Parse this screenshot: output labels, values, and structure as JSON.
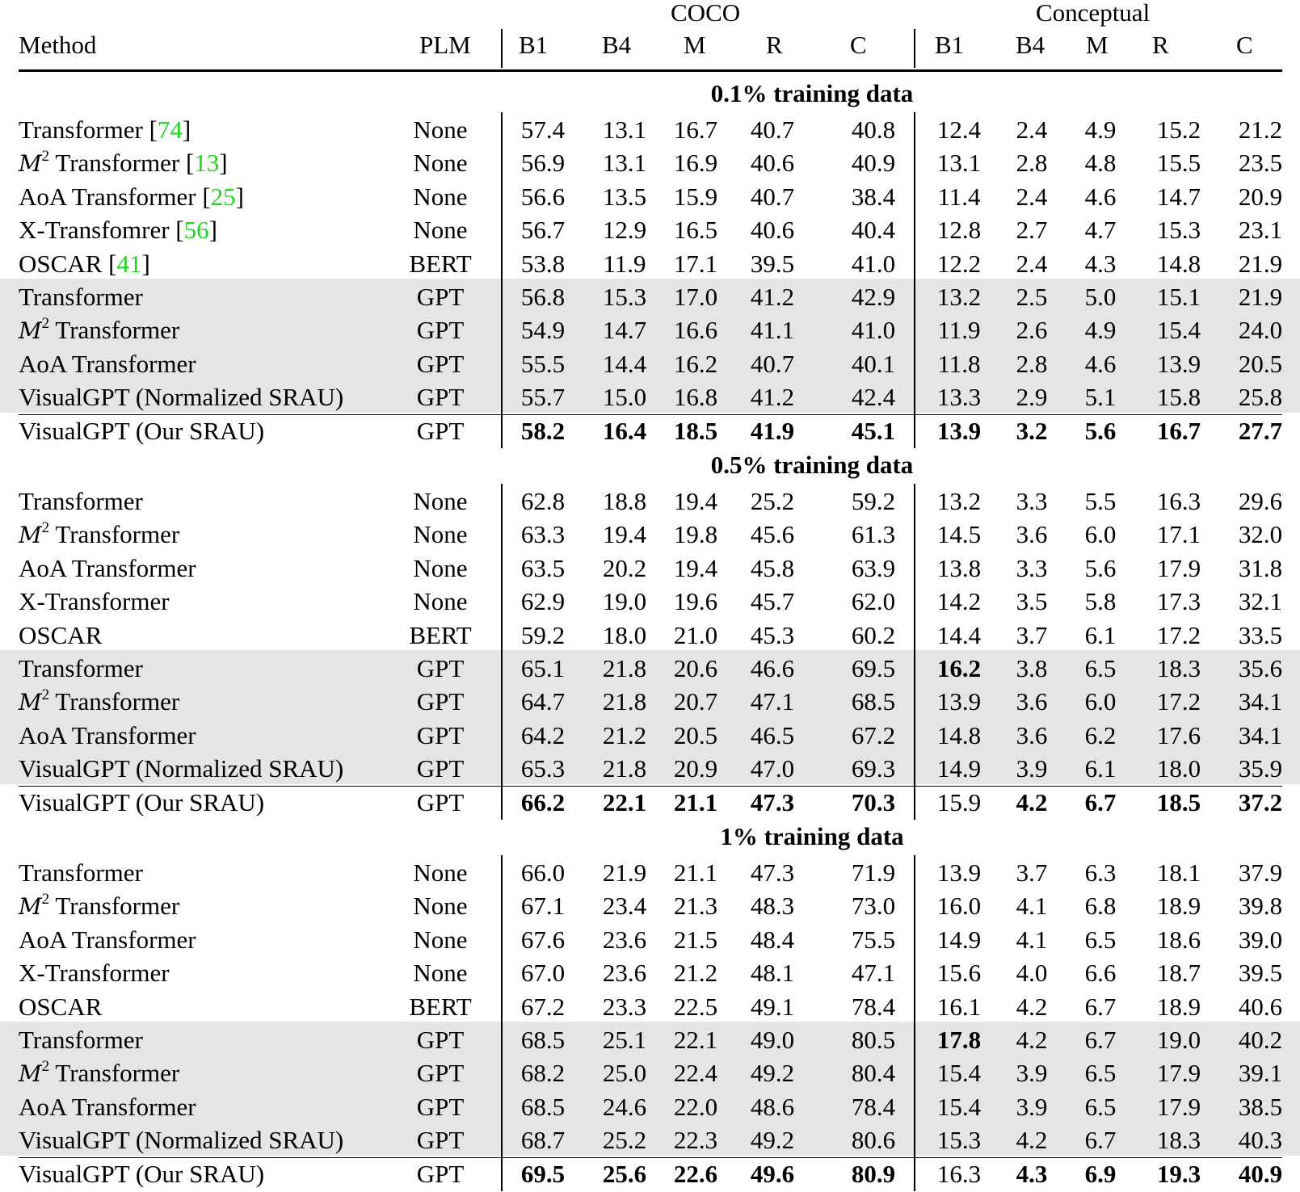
{
  "table": {
    "group_headers": {
      "coco": "COCO",
      "conceptual": "Conceptual"
    },
    "columns": {
      "method": "Method",
      "plm": "PLM",
      "coco": [
        "B1",
        "B4",
        "M",
        "R",
        "C"
      ],
      "conceptual": [
        "B1",
        "B4",
        "M",
        "R",
        "C"
      ]
    },
    "colors": {
      "shade": "#e5e5e5",
      "citation": "#1fd61f"
    },
    "sections": [
      {
        "title": "0.1% training data",
        "rows": [
          {
            "prefix": "",
            "name": "Transformer ",
            "ref": "74",
            "plm": "None",
            "shaded": false,
            "values": [
              "57.4",
              "13.1",
              "16.7",
              "40.7",
              "40.8",
              "12.4",
              "2.4",
              "4.9",
              "15.2",
              "21.2"
            ],
            "bold": []
          },
          {
            "prefix": "M",
            "sup": "2",
            "name": " Transformer ",
            "ref": "13",
            "plm": "None",
            "shaded": false,
            "values": [
              "56.9",
              "13.1",
              "16.9",
              "40.6",
              "40.9",
              "13.1",
              "2.8",
              "4.8",
              "15.5",
              "23.5"
            ],
            "bold": []
          },
          {
            "prefix": "",
            "name": "AoA Transformer ",
            "ref": "25",
            "plm": "None",
            "shaded": false,
            "values": [
              "56.6",
              "13.5",
              "15.9",
              "40.7",
              "38.4",
              "11.4",
              "2.4",
              "4.6",
              "14.7",
              "20.9"
            ],
            "bold": []
          },
          {
            "prefix": "",
            "name": "X-Transfomrer ",
            "ref": "56",
            "plm": "None",
            "shaded": false,
            "values": [
              "56.7",
              "12.9",
              "16.5",
              "40.6",
              "40.4",
              "12.8",
              "2.7",
              "4.7",
              "15.3",
              "23.1"
            ],
            "bold": []
          },
          {
            "prefix": "",
            "name": "OSCAR ",
            "ref": "41",
            "plm": "BERT",
            "shaded": false,
            "values": [
              "53.8",
              "11.9",
              "17.1",
              "39.5",
              "41.0",
              "12.2",
              "2.4",
              "4.3",
              "14.8",
              "21.9"
            ],
            "bold": []
          },
          {
            "prefix": "",
            "name": "Transformer",
            "plm": "GPT",
            "shaded": true,
            "values": [
              "56.8",
              "15.3",
              "17.0",
              "41.2",
              "42.9",
              "13.2",
              "2.5",
              "5.0",
              "15.1",
              "21.9"
            ],
            "bold": []
          },
          {
            "prefix": "M",
            "sup": "2",
            "name": " Transformer",
            "plm": "GPT",
            "shaded": true,
            "values": [
              "54.9",
              "14.7",
              "16.6",
              "41.1",
              "41.0",
              "11.9",
              "2.6",
              "4.9",
              "15.4",
              "24.0"
            ],
            "bold": []
          },
          {
            "prefix": "",
            "name": "AoA Transformer",
            "plm": "GPT",
            "shaded": true,
            "values": [
              "55.5",
              "14.4",
              "16.2",
              "40.7",
              "40.1",
              "11.8",
              "2.8",
              "4.6",
              "13.9",
              "20.5"
            ],
            "bold": []
          },
          {
            "prefix": "",
            "name": "VisualGPT (Normalized SRAU)",
            "plm": "GPT",
            "shaded": true,
            "values": [
              "55.7",
              "15.0",
              "16.8",
              "41.2",
              "42.4",
              "13.3",
              "2.9",
              "5.1",
              "15.8",
              "25.8"
            ],
            "bold": []
          },
          {
            "prefix": "",
            "name": "VisualGPT (Our SRAU)",
            "plm": "GPT",
            "shaded": false,
            "values": [
              "58.2",
              "16.4",
              "18.5",
              "41.9",
              "45.1",
              "13.9",
              "3.2",
              "5.6",
              "16.7",
              "27.7"
            ],
            "bold": [
              0,
              1,
              2,
              3,
              4,
              5,
              6,
              7,
              8,
              9
            ]
          }
        ]
      },
      {
        "title": "0.5% training data",
        "rows": [
          {
            "prefix": "",
            "name": "Transformer",
            "plm": "None",
            "shaded": false,
            "values": [
              "62.8",
              "18.8",
              "19.4",
              "25.2",
              "59.2",
              "13.2",
              "3.3",
              "5.5",
              "16.3",
              "29.6"
            ],
            "bold": []
          },
          {
            "prefix": "M",
            "sup": "2",
            "name": " Transformer",
            "plm": "None",
            "shaded": false,
            "values": [
              "63.3",
              "19.4",
              "19.8",
              "45.6",
              "61.3",
              "14.5",
              "3.6",
              "6.0",
              "17.1",
              "32.0"
            ],
            "bold": []
          },
          {
            "prefix": "",
            "name": "AoA Transformer",
            "plm": "None",
            "shaded": false,
            "values": [
              "63.5",
              "20.2",
              "19.4",
              "45.8",
              "63.9",
              "13.8",
              "3.3",
              "5.6",
              "17.9",
              "31.8"
            ],
            "bold": []
          },
          {
            "prefix": "",
            "name": "X-Transformer",
            "plm": "None",
            "shaded": false,
            "values": [
              "62.9",
              "19.0",
              "19.6",
              "45.7",
              "62.0",
              "14.2",
              "3.5",
              "5.8",
              "17.3",
              "32.1"
            ],
            "bold": []
          },
          {
            "prefix": "",
            "name": "OSCAR",
            "plm": "BERT",
            "shaded": false,
            "values": [
              "59.2",
              "18.0",
              "21.0",
              "45.3",
              "60.2",
              "14.4",
              "3.7",
              "6.1",
              "17.2",
              "33.5"
            ],
            "bold": []
          },
          {
            "prefix": "",
            "name": "Transformer",
            "plm": "GPT",
            "shaded": true,
            "values": [
              "65.1",
              "21.8",
              "20.6",
              "46.6",
              "69.5",
              "16.2",
              "3.8",
              "6.5",
              "18.3",
              "35.6"
            ],
            "bold": [
              5
            ]
          },
          {
            "prefix": "M",
            "sup": "2",
            "name": " Transformer",
            "plm": "GPT",
            "shaded": true,
            "values": [
              "64.7",
              "21.8",
              "20.7",
              "47.1",
              "68.5",
              "13.9",
              "3.6",
              "6.0",
              "17.2",
              "34.1"
            ],
            "bold": []
          },
          {
            "prefix": "",
            "name": "AoA Transformer",
            "plm": "GPT",
            "shaded": true,
            "values": [
              "64.2",
              "21.2",
              "20.5",
              "46.5",
              "67.2",
              "14.8",
              "3.6",
              "6.2",
              "17.6",
              "34.1"
            ],
            "bold": []
          },
          {
            "prefix": "",
            "name": "VisualGPT (Normalized SRAU)",
            "plm": "GPT",
            "shaded": true,
            "values": [
              "65.3",
              "21.8",
              "20.9",
              "47.0",
              "69.3",
              "14.9",
              "3.9",
              "6.1",
              "18.0",
              "35.9"
            ],
            "bold": []
          },
          {
            "prefix": "",
            "name": "VisualGPT (Our SRAU)",
            "plm": "GPT",
            "shaded": false,
            "values": [
              "66.2",
              "22.1",
              "21.1",
              "47.3",
              "70.3",
              "15.9",
              "4.2",
              "6.7",
              "18.5",
              "37.2"
            ],
            "bold": [
              0,
              1,
              2,
              3,
              4,
              6,
              7,
              8,
              9
            ]
          }
        ]
      },
      {
        "title": "1% training data",
        "rows": [
          {
            "prefix": "",
            "name": "Transformer",
            "plm": "None",
            "shaded": false,
            "values": [
              "66.0",
              "21.9",
              "21.1",
              "47.3",
              "71.9",
              "13.9",
              "3.7",
              "6.3",
              "18.1",
              "37.9"
            ],
            "bold": []
          },
          {
            "prefix": "M",
            "sup": "2",
            "name": " Transformer",
            "plm": "None",
            "shaded": false,
            "values": [
              "67.1",
              "23.4",
              "21.3",
              "48.3",
              "73.0",
              "16.0",
              "4.1",
              "6.8",
              "18.9",
              "39.8"
            ],
            "bold": []
          },
          {
            "prefix": "",
            "name": "AoA Transformer",
            "plm": "None",
            "shaded": false,
            "values": [
              "67.6",
              "23.6",
              "21.5",
              "48.4",
              "75.5",
              "14.9",
              "4.1",
              "6.5",
              "18.6",
              "39.0"
            ],
            "bold": []
          },
          {
            "prefix": "",
            "name": "X-Transformer",
            "plm": "None",
            "shaded": false,
            "values": [
              "67.0",
              "23.6",
              "21.2",
              "48.1",
              "47.1",
              "15.6",
              "4.0",
              "6.6",
              "18.7",
              "39.5"
            ],
            "bold": []
          },
          {
            "prefix": "",
            "name": "OSCAR",
            "plm": "BERT",
            "shaded": false,
            "values": [
              "67.2",
              "23.3",
              "22.5",
              "49.1",
              "78.4",
              "16.1",
              "4.2",
              "6.7",
              "18.9",
              "40.6"
            ],
            "bold": []
          },
          {
            "prefix": "",
            "name": "Transformer",
            "plm": "GPT",
            "shaded": true,
            "values": [
              "68.5",
              "25.1",
              "22.1",
              "49.0",
              "80.5",
              "17.8",
              "4.2",
              "6.7",
              "19.0",
              "40.2"
            ],
            "bold": [
              5
            ]
          },
          {
            "prefix": "M",
            "sup": "2",
            "name": " Transformer",
            "plm": "GPT",
            "shaded": true,
            "values": [
              "68.2",
              "25.0",
              "22.4",
              "49.2",
              "80.4",
              "15.4",
              "3.9",
              "6.5",
              "17.9",
              "39.1"
            ],
            "bold": []
          },
          {
            "prefix": "",
            "name": "AoA Transformer",
            "plm": "GPT",
            "shaded": true,
            "values": [
              "68.5",
              "24.6",
              "22.0",
              "48.6",
              "78.4",
              "15.4",
              "3.9",
              "6.5",
              "17.9",
              "38.5"
            ],
            "bold": []
          },
          {
            "prefix": "",
            "name": "VisualGPT (Normalized SRAU)",
            "plm": "GPT",
            "shaded": true,
            "values": [
              "68.7",
              "25.2",
              "22.3",
              "49.2",
              "80.6",
              "15.3",
              "4.2",
              "6.7",
              "18.3",
              "40.3"
            ],
            "bold": []
          },
          {
            "prefix": "",
            "name": "VisualGPT (Our SRAU)",
            "plm": "GPT",
            "shaded": false,
            "values": [
              "69.5",
              "25.6",
              "22.6",
              "49.6",
              "80.9",
              "16.3",
              "4.3",
              "6.9",
              "19.3",
              "40.9"
            ],
            "bold": [
              0,
              1,
              2,
              3,
              4,
              6,
              7,
              8,
              9
            ]
          }
        ]
      }
    ]
  }
}
